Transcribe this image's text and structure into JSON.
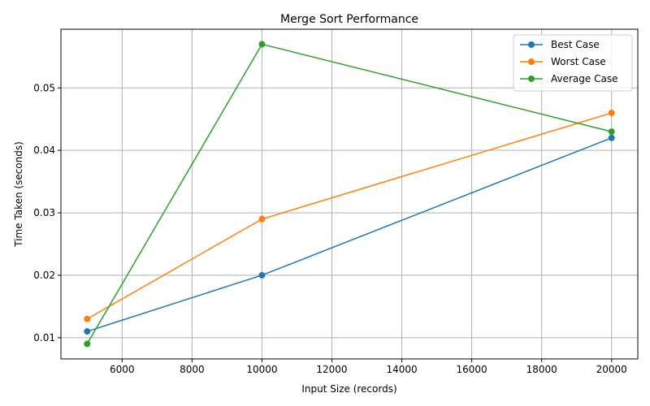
{
  "chart_data": {
    "type": "line",
    "title": "Merge Sort Performance",
    "xlabel": "Input Size (records)",
    "ylabel": "Time Taken (seconds)",
    "x": [
      5000,
      10000,
      20000
    ],
    "series": [
      {
        "name": "Best Case",
        "values": [
          0.011,
          0.02,
          0.042
        ],
        "color": "#1f77b4"
      },
      {
        "name": "Worst Case",
        "values": [
          0.013,
          0.029,
          0.046
        ],
        "color": "#ff7f0e"
      },
      {
        "name": "Average Case",
        "values": [
          0.009,
          0.057,
          0.043
        ],
        "color": "#2ca02c"
      }
    ],
    "xlim": [
      4250,
      20750
    ],
    "ylim": [
      0.0066,
      0.0594
    ],
    "xticks": [
      6000,
      8000,
      10000,
      12000,
      14000,
      16000,
      18000,
      20000
    ],
    "yticks": [
      0.01,
      0.02,
      0.03,
      0.04,
      0.05
    ],
    "xtick_labels": [
      "6000",
      "8000",
      "10000",
      "12000",
      "14000",
      "16000",
      "18000",
      "20000"
    ],
    "ytick_labels": [
      "0.01",
      "0.02",
      "0.03",
      "0.04",
      "0.05"
    ],
    "grid": true,
    "legend_position": "top-right",
    "marker": "circle"
  }
}
